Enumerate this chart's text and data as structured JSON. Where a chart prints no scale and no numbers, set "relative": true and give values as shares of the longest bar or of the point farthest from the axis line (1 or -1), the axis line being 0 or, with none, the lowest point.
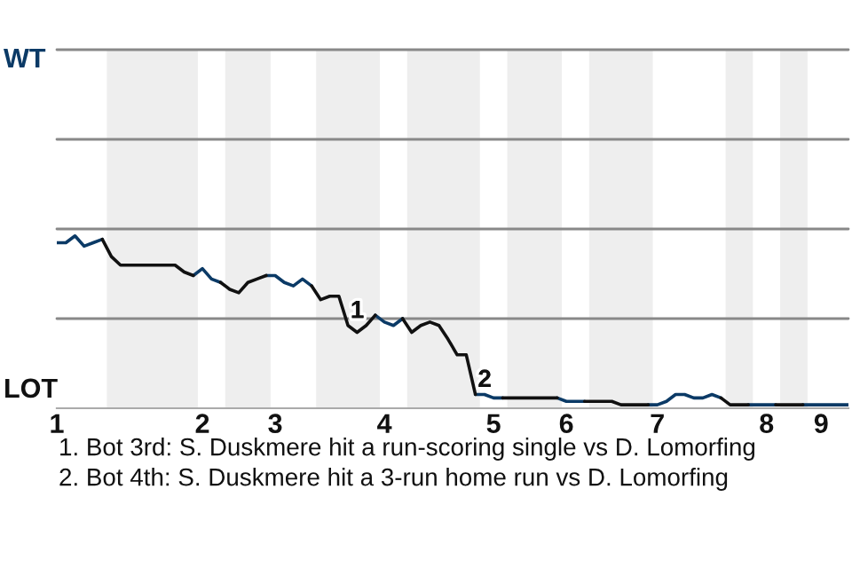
{
  "chart_data": {
    "type": "line",
    "relative": true,
    "marker": "none",
    "line_style": "solid",
    "categories": [
      "1",
      null,
      null,
      null,
      null,
      null,
      null,
      null,
      null,
      null,
      null,
      null,
      null,
      null,
      null,
      null,
      "2",
      null,
      null,
      null,
      null,
      null,
      null,
      null,
      "3",
      null,
      null,
      null,
      null,
      null,
      null,
      null,
      null,
      null,
      null,
      null,
      "4",
      null,
      null,
      null,
      null,
      null,
      null,
      null,
      null,
      null,
      null,
      null,
      "5",
      null,
      null,
      null,
      null,
      null,
      null,
      null,
      "6",
      null,
      null,
      null,
      null,
      null,
      null,
      null,
      null,
      null,
      "7",
      null,
      null,
      null,
      null,
      null,
      null,
      null,
      null,
      null,
      null,
      null,
      "8",
      null,
      null,
      null,
      null,
      null,
      "9",
      null,
      null,
      null
    ],
    "ref_lines": [
      {
        "axis": "y",
        "value": 0.52,
        "color": "#888888"
      },
      {
        "axis": "y",
        "value": 1.04,
        "color": "#888888"
      },
      {
        "axis": "y",
        "value": 1.56,
        "color": "#888888"
      },
      {
        "axis": "y",
        "value": 2.08,
        "color": "#888888"
      }
    ],
    "series": [
      {
        "color": "#0b3a66",
        "values": [
          0.96,
          0.96,
          1,
          0.94,
          0.96,
          0.98,
          null,
          null,
          null,
          null,
          null,
          null,
          null,
          null,
          null,
          0.77,
          0.81,
          0.75,
          0.73,
          null,
          null,
          null,
          null,
          0.77,
          0.77,
          0.73,
          0.71,
          0.75,
          0.71,
          null,
          null,
          null,
          null,
          null,
          null,
          0.54,
          0.5,
          0.48,
          0.52,
          null,
          null,
          null,
          null,
          null,
          null,
          null,
          0.08,
          0.08,
          0.06,
          0.06,
          null,
          null,
          null,
          null,
          null,
          0.06,
          0.04,
          0.04,
          0.04,
          null,
          null,
          null,
          null,
          null,
          null,
          0.02,
          0.02,
          0.04,
          0.08,
          0.08,
          0.06,
          0.06,
          0.08,
          0.06,
          null,
          null,
          0.02,
          0.02,
          0.02,
          0.02,
          null,
          null,
          0.02,
          0.02,
          0.02,
          0.02,
          0.02,
          0.02
        ]
      },
      {
        "color": "#111111",
        "values": [
          null,
          null,
          null,
          null,
          null,
          0.98,
          0.88,
          0.83,
          0.83,
          0.83,
          0.83,
          0.83,
          0.83,
          0.83,
          0.79,
          0.77,
          null,
          null,
          0.73,
          0.69,
          0.67,
          0.73,
          0.75,
          0.77,
          null,
          null,
          null,
          null,
          0.71,
          0.63,
          0.65,
          0.65,
          0.48,
          0.44,
          0.48,
          0.54,
          null,
          null,
          0.52,
          0.44,
          0.48,
          0.5,
          0.48,
          0.4,
          0.31,
          0.31,
          0.08,
          null,
          null,
          0.06,
          0.06,
          0.06,
          0.06,
          0.06,
          0.06,
          0.06,
          null,
          null,
          0.04,
          0.04,
          0.04,
          0.04,
          0.02,
          0.02,
          0.02,
          0.02,
          null,
          null,
          null,
          null,
          null,
          null,
          null,
          0.06,
          0.02,
          0.02,
          0.02,
          null,
          null,
          0.02,
          0.02,
          0.02,
          0.02,
          null,
          null,
          null,
          null,
          null
        ]
      }
    ],
    "annotations": [
      {
        "text": "1",
        "y": 0.48
      },
      {
        "text": "2",
        "y": 0.08
      },
      "WT",
      "LOT",
      "1. Bot 3rd: S. Duskmere hit a run-scoring single vs D. Lomorfing",
      "2. Bot 4th: S. Duskmere hit a 3-run home run vs D. Lomorfing"
    ]
  }
}
